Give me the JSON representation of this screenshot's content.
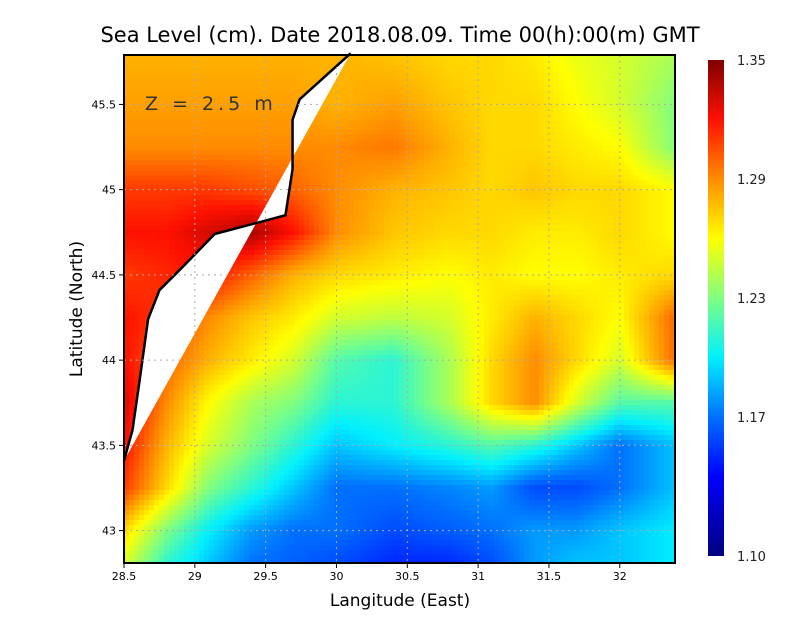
{
  "chart_data": {
    "type": "heatmap",
    "title": "Sea Level (cm). Date 2018.08.09. Time 00(h):00(m) GMT",
    "xlabel": "Langitude (East)",
    "ylabel": "Latitude (North)",
    "annotation": "Z = 2.5 m",
    "xlim": [
      28.5,
      32.39
    ],
    "ylim": [
      42.81,
      45.79
    ],
    "xticks": [
      28.5,
      29,
      29.5,
      30,
      30.5,
      31,
      31.5,
      32
    ],
    "xtick_labels": [
      "28.5",
      "29",
      "29.5",
      "30",
      "30.5",
      "31",
      "31.5",
      "32"
    ],
    "yticks": [
      43,
      43.5,
      44,
      44.5,
      45,
      45.5
    ],
    "ytick_labels": [
      "43",
      "43.5",
      "44",
      "44.5",
      "45",
      "45.5"
    ],
    "grid": true,
    "colorbar": {
      "range": [
        1.1,
        1.35
      ],
      "ticks": [
        1.35,
        1.29,
        1.23,
        1.17,
        1.1
      ],
      "tick_labels": [
        "1.35",
        "1.29",
        "1.23",
        "1.17",
        "1.10"
      ],
      "stops": [
        [
          1.1,
          "#00007f"
        ],
        [
          1.14,
          "#0000ff"
        ],
        [
          1.17,
          "#0070ff"
        ],
        [
          1.2,
          "#00f0ff"
        ],
        [
          1.23,
          "#80ff80"
        ],
        [
          1.26,
          "#ffff00"
        ],
        [
          1.29,
          "#ff8c00"
        ],
        [
          1.32,
          "#ff1000"
        ],
        [
          1.35,
          "#800000"
        ]
      ]
    },
    "grid_lon": [
      28.5,
      28.8,
      29.1,
      29.4,
      29.7,
      30.0,
      30.4,
      30.8,
      31.1,
      31.4,
      31.7,
      32.0,
      32.4
    ],
    "grid_lat": [
      45.8,
      45.5,
      45.25,
      45.0,
      44.75,
      44.5,
      44.25,
      44.0,
      43.75,
      43.5,
      43.25,
      43.0,
      42.8
    ],
    "values": [
      [
        1.28,
        1.28,
        1.28,
        1.28,
        1.28,
        1.28,
        1.275,
        1.27,
        1.27,
        1.265,
        1.255,
        1.25,
        1.24
      ],
      [
        1.285,
        1.285,
        1.285,
        1.285,
        1.285,
        1.28,
        1.285,
        1.275,
        1.27,
        1.27,
        1.26,
        1.25,
        1.23
      ],
      [
        1.29,
        1.29,
        1.29,
        1.29,
        1.29,
        1.29,
        1.295,
        1.28,
        1.27,
        1.27,
        1.265,
        1.26,
        1.23
      ],
      [
        1.31,
        1.31,
        1.31,
        1.305,
        1.3,
        1.29,
        1.28,
        1.275,
        1.27,
        1.275,
        1.27,
        1.27,
        1.26
      ],
      [
        1.32,
        1.32,
        1.33,
        1.34,
        1.32,
        1.29,
        1.275,
        1.27,
        1.27,
        1.265,
        1.265,
        1.27,
        1.26
      ],
      [
        1.31,
        1.315,
        1.32,
        1.3,
        1.28,
        1.27,
        1.265,
        1.26,
        1.265,
        1.26,
        1.26,
        1.265,
        1.27
      ],
      [
        1.32,
        1.31,
        1.29,
        1.275,
        1.265,
        1.25,
        1.245,
        1.25,
        1.265,
        1.28,
        1.27,
        1.26,
        1.3
      ],
      [
        1.32,
        1.3,
        1.28,
        1.265,
        1.25,
        1.22,
        1.21,
        1.24,
        1.27,
        1.29,
        1.27,
        1.25,
        1.3
      ],
      [
        1.33,
        1.29,
        1.26,
        1.24,
        1.23,
        1.21,
        1.21,
        1.24,
        1.27,
        1.29,
        1.25,
        1.22,
        1.22
      ],
      [
        1.32,
        1.28,
        1.25,
        1.23,
        1.21,
        1.19,
        1.2,
        1.21,
        1.22,
        1.21,
        1.19,
        1.17,
        1.19
      ],
      [
        1.31,
        1.27,
        1.23,
        1.21,
        1.19,
        1.17,
        1.17,
        1.175,
        1.18,
        1.16,
        1.16,
        1.17,
        1.19
      ],
      [
        1.27,
        1.23,
        1.2,
        1.18,
        1.17,
        1.17,
        1.16,
        1.165,
        1.17,
        1.18,
        1.18,
        1.19,
        1.2
      ],
      [
        1.25,
        1.21,
        1.19,
        1.17,
        1.165,
        1.16,
        1.15,
        1.15,
        1.16,
        1.18,
        1.19,
        1.19,
        1.2
      ]
    ],
    "coastline": [
      [
        30.1,
        45.8
      ],
      [
        29.74,
        45.53
      ],
      [
        29.69,
        45.41
      ],
      [
        29.69,
        45.12
      ],
      [
        29.64,
        44.85
      ],
      [
        29.46,
        44.81
      ],
      [
        29.14,
        44.74
      ],
      [
        28.93,
        44.56
      ],
      [
        28.75,
        44.41
      ],
      [
        28.67,
        44.24
      ],
      [
        28.61,
        43.88
      ],
      [
        28.56,
        43.59
      ],
      [
        28.5,
        43.41
      ]
    ],
    "land_corner": [
      28.5,
      45.8
    ]
  }
}
